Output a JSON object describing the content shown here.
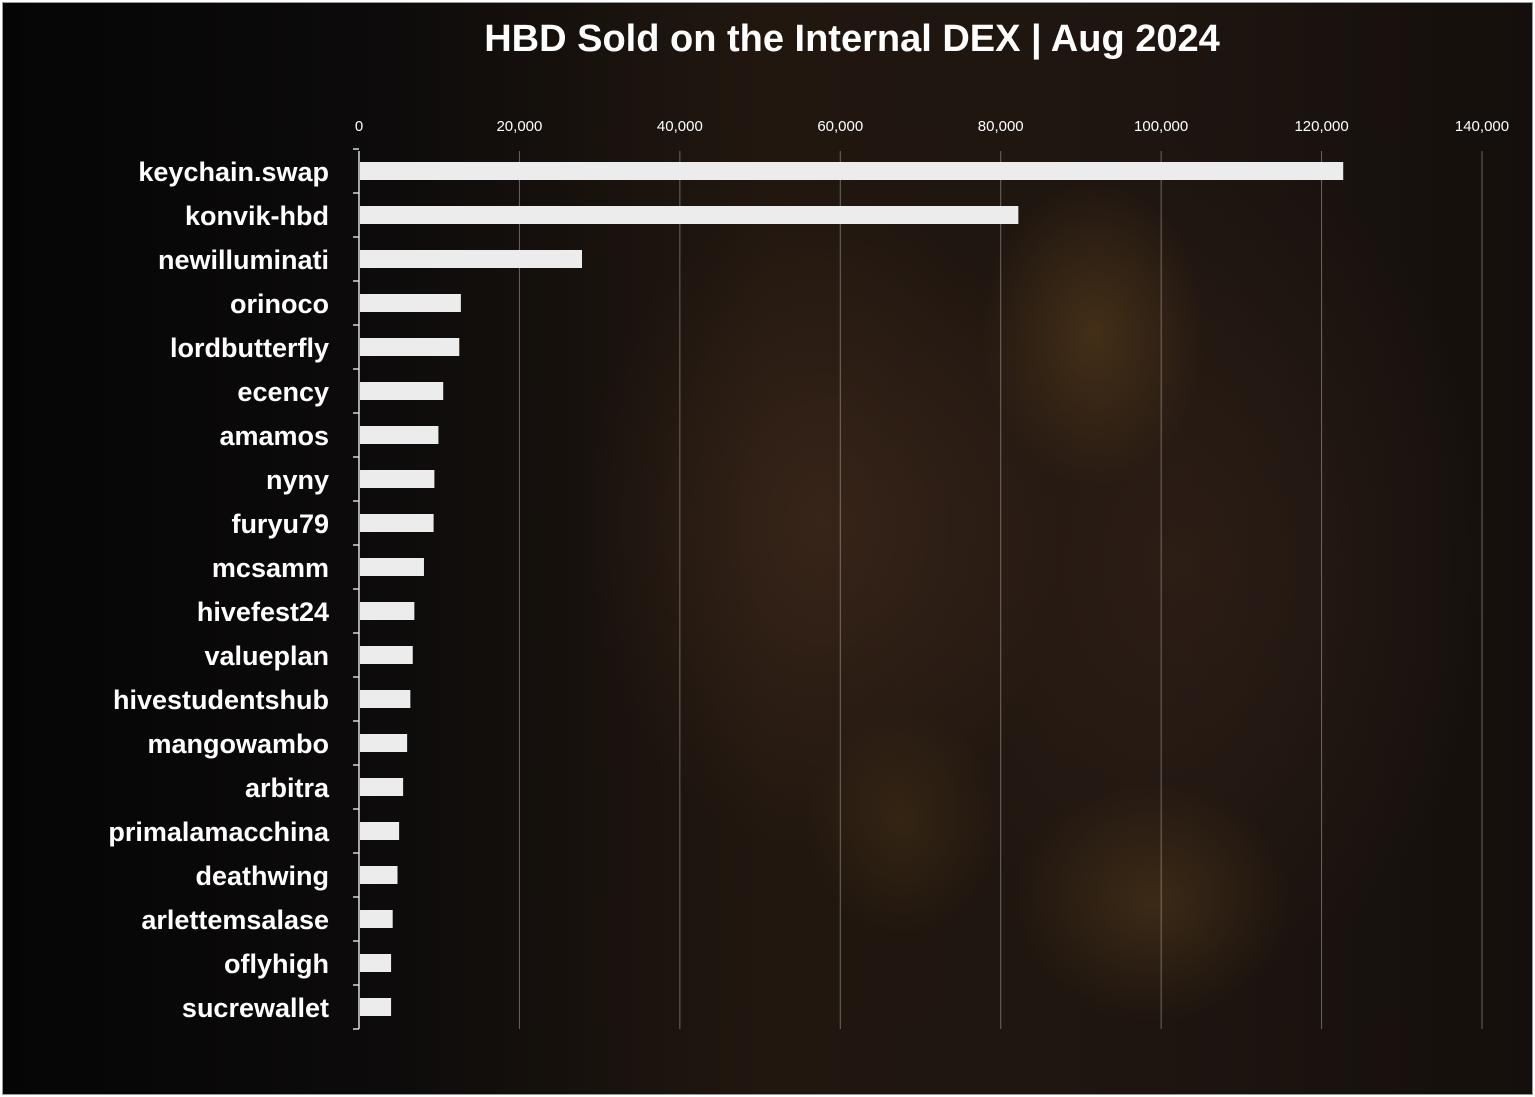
{
  "chart_data": {
    "type": "bar",
    "orientation": "horizontal",
    "title": "HBD Sold on the Internal DEX | Aug 2024",
    "xlabel": "",
    "ylabel": "",
    "xlim": [
      0,
      140000
    ],
    "x_ticks": [
      0,
      20000,
      40000,
      60000,
      80000,
      100000,
      120000,
      140000
    ],
    "x_tick_labels": [
      "0",
      "20,000",
      "40,000",
      "60,000",
      "80,000",
      "100,000",
      "120,000",
      "140,000"
    ],
    "x_axis_position": "top",
    "grid": true,
    "legend": "none",
    "categories": [
      "keychain.swap",
      "konvik-hbd",
      "newilluminati",
      "orinoco",
      "lordbutterfly",
      "ecency",
      "amamos",
      "nyny",
      "furyu79",
      "mcsamm",
      "hivefest24",
      "valueplan",
      "hivestudentshub",
      "mangowambo",
      "arbitra",
      "primalamacchina",
      "deathwing",
      "arlettemsalase",
      "oflyhigh",
      "sucrewallet"
    ],
    "values": [
      122700,
      82200,
      27800,
      12700,
      12500,
      10500,
      9900,
      9400,
      9300,
      8100,
      6900,
      6700,
      6400,
      6000,
      5500,
      5000,
      4800,
      4200,
      4000,
      4000
    ],
    "colors": {
      "bar": "#ececec",
      "text": "#ffffff",
      "background": "#1a1410"
    }
  }
}
